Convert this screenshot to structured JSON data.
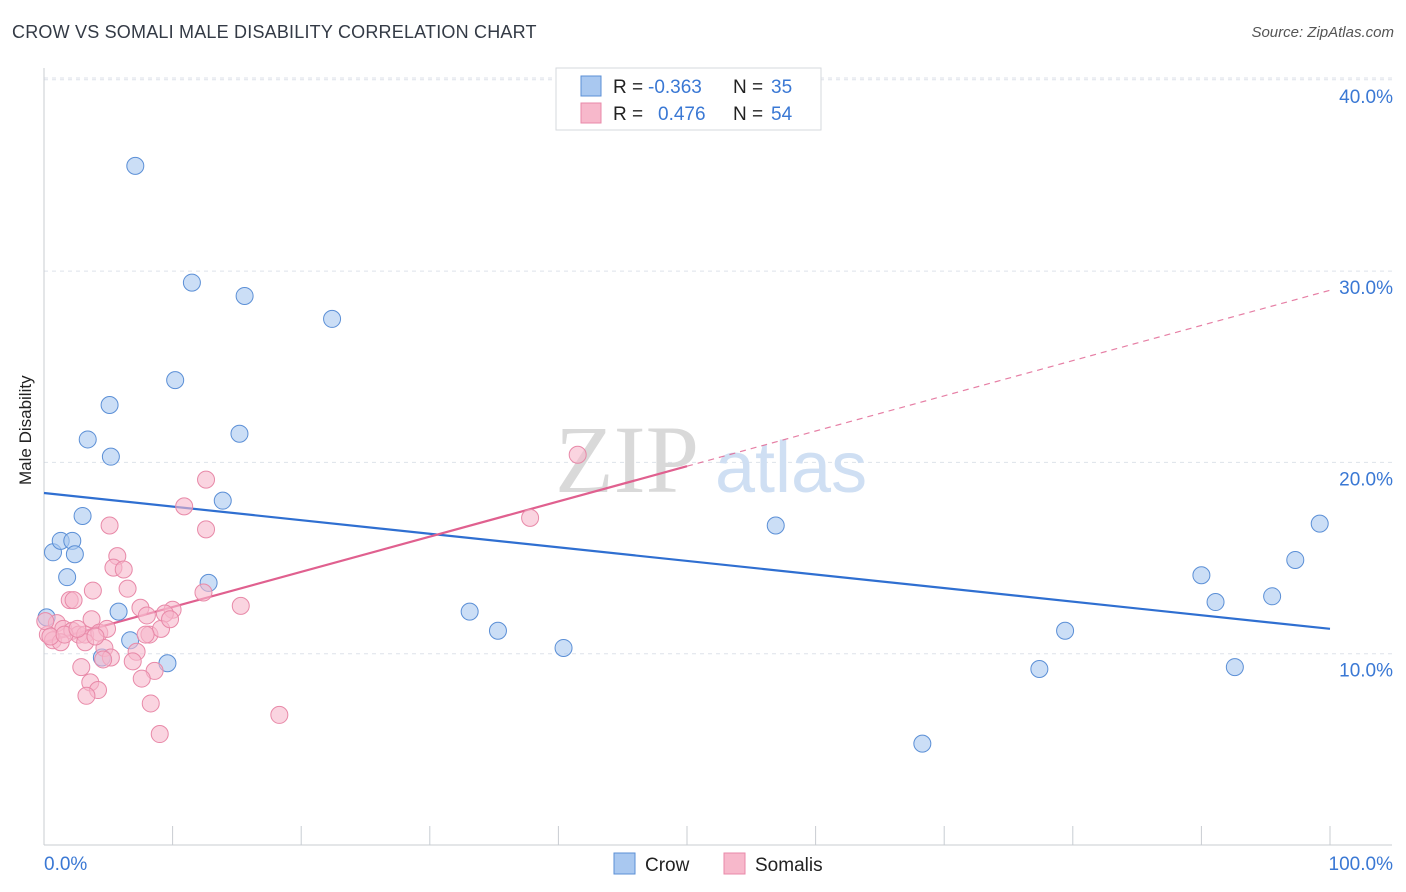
{
  "header": {
    "title": "CROW VS SOMALI MALE DISABILITY CORRELATION CHART",
    "source": "Source: ZipAtlas.com"
  },
  "watermark": {
    "zip": "ZIP",
    "atlas": "atlas"
  },
  "colors": {
    "crow_fill": "#a9c8f0",
    "crow_stroke": "#5b8fd6",
    "crow_line": "#2f6fd1",
    "somali_fill": "#f7b8cb",
    "somali_stroke": "#e889a8",
    "somali_line": "#e0608f",
    "value_text": "#3a78d4",
    "grid": "#dde2ea"
  },
  "chart_data": {
    "type": "scatter",
    "title": "CROW VS SOMALI MALE DISABILITY CORRELATION CHART",
    "xlabel": "",
    "ylabel": "Male Disability",
    "xlim": [
      0,
      100
    ],
    "ylim": [
      0,
      41
    ],
    "x_tick_labels": [
      "0.0%",
      "100.0%"
    ],
    "y_ticks": [
      10,
      20,
      30,
      40
    ],
    "y_tick_labels": [
      "10.0%",
      "20.0%",
      "30.0%",
      "40.0%"
    ],
    "legend_position": "top-center",
    "series": [
      {
        "name": "Crow",
        "r_label": "R =",
        "r_value": "-0.363",
        "n_label": "N =",
        "n_value": "35",
        "trend": {
          "x0": 0,
          "y0": 18.4,
          "x1": 100,
          "y1": 11.3,
          "solid_until": 100
        },
        "points": [
          [
            7.1,
            35.5
          ],
          [
            11.5,
            29.4
          ],
          [
            15.6,
            28.7
          ],
          [
            22.4,
            27.5
          ],
          [
            10.2,
            24.3
          ],
          [
            5.1,
            23.0
          ],
          [
            3.4,
            21.2
          ],
          [
            15.2,
            21.5
          ],
          [
            5.2,
            20.3
          ],
          [
            13.9,
            18.0
          ],
          [
            3.0,
            17.2
          ],
          [
            0.7,
            15.3
          ],
          [
            1.3,
            15.9
          ],
          [
            2.2,
            15.9
          ],
          [
            2.4,
            15.2
          ],
          [
            1.8,
            14.0
          ],
          [
            12.8,
            13.7
          ],
          [
            5.8,
            12.2
          ],
          [
            6.7,
            10.7
          ],
          [
            9.6,
            9.5
          ],
          [
            4.5,
            9.8
          ],
          [
            33.1,
            12.2
          ],
          [
            35.3,
            11.2
          ],
          [
            40.4,
            10.3
          ],
          [
            56.9,
            16.7
          ],
          [
            77.4,
            9.2
          ],
          [
            79.4,
            11.2
          ],
          [
            90.0,
            14.1
          ],
          [
            91.1,
            12.7
          ],
          [
            92.6,
            9.3
          ],
          [
            95.5,
            13.0
          ],
          [
            97.3,
            14.9
          ],
          [
            99.2,
            16.8
          ],
          [
            68.3,
            5.3
          ],
          [
            0.2,
            11.9
          ]
        ]
      },
      {
        "name": "Somalis",
        "r_label": "R =",
        "r_value": "0.476",
        "n_label": "N =",
        "n_value": "54",
        "trend": {
          "x0": 0,
          "y0": 10.6,
          "x1": 100,
          "y1": 29.0,
          "solid_until": 50
        },
        "points": [
          [
            41.5,
            20.4
          ],
          [
            37.8,
            17.1
          ],
          [
            12.6,
            19.1
          ],
          [
            10.9,
            17.7
          ],
          [
            12.6,
            16.5
          ],
          [
            5.1,
            16.7
          ],
          [
            5.7,
            15.1
          ],
          [
            5.4,
            14.5
          ],
          [
            6.2,
            14.4
          ],
          [
            3.8,
            13.3
          ],
          [
            6.5,
            13.4
          ],
          [
            2.0,
            12.8
          ],
          [
            2.3,
            12.8
          ],
          [
            12.4,
            13.2
          ],
          [
            15.3,
            12.5
          ],
          [
            7.5,
            12.4
          ],
          [
            10.0,
            12.3
          ],
          [
            8.0,
            12.0
          ],
          [
            9.4,
            12.1
          ],
          [
            3.7,
            11.8
          ],
          [
            1.0,
            11.6
          ],
          [
            1.5,
            11.3
          ],
          [
            2.2,
            11.2
          ],
          [
            2.7,
            11.0
          ],
          [
            3.2,
            11.0
          ],
          [
            4.3,
            11.1
          ],
          [
            4.9,
            11.3
          ],
          [
            8.2,
            11.0
          ],
          [
            9.1,
            11.3
          ],
          [
            0.3,
            11.0
          ],
          [
            0.7,
            10.7
          ],
          [
            1.3,
            10.6
          ],
          [
            3.2,
            10.6
          ],
          [
            4.7,
            10.3
          ],
          [
            7.2,
            10.1
          ],
          [
            6.9,
            9.6
          ],
          [
            5.2,
            9.8
          ],
          [
            8.6,
            9.1
          ],
          [
            2.9,
            9.3
          ],
          [
            7.6,
            8.7
          ],
          [
            3.6,
            8.5
          ],
          [
            4.2,
            8.1
          ],
          [
            3.3,
            7.8
          ],
          [
            8.3,
            7.4
          ],
          [
            18.3,
            6.8
          ],
          [
            9.0,
            5.8
          ],
          [
            0.1,
            11.7
          ],
          [
            0.5,
            10.9
          ],
          [
            1.6,
            11.0
          ],
          [
            2.6,
            11.3
          ],
          [
            4.0,
            10.9
          ],
          [
            7.9,
            11.0
          ],
          [
            9.8,
            11.8
          ],
          [
            4.6,
            9.7
          ]
        ]
      }
    ]
  }
}
